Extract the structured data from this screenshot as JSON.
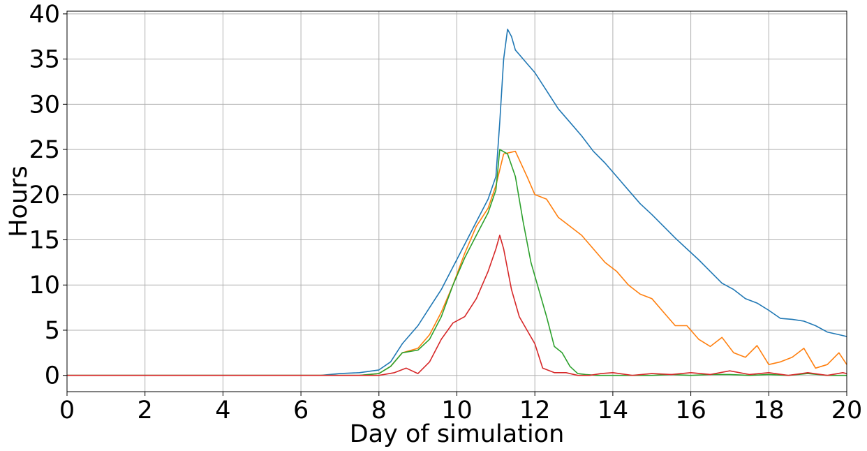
{
  "chart_data": {
    "type": "line",
    "title": "",
    "xlabel": "Day of simulation",
    "ylabel": "Hours",
    "xlim": [
      0,
      20
    ],
    "ylim": [
      -1.8,
      40.3
    ],
    "grid": true,
    "x_ticks": [
      "0",
      "2",
      "4",
      "6",
      "8",
      "10",
      "12",
      "14",
      "16",
      "18",
      "20"
    ],
    "y_ticks": [
      "0",
      "5",
      "10",
      "15",
      "20",
      "25",
      "30",
      "35",
      "40"
    ],
    "series": [
      {
        "color": "#1f77b4",
        "x": [
          0,
          6.5,
          7.0,
          7.5,
          8.0,
          8.3,
          8.6,
          9.0,
          9.3,
          9.6,
          9.9,
          10.2,
          10.5,
          10.8,
          11.0,
          11.1,
          11.2,
          11.3,
          11.4,
          11.5,
          11.6,
          11.8,
          12.0,
          12.3,
          12.6,
          12.9,
          13.2,
          13.5,
          13.8,
          14.1,
          14.4,
          14.7,
          15.0,
          15.3,
          15.6,
          15.9,
          16.2,
          16.5,
          16.8,
          17.1,
          17.4,
          17.7,
          18.0,
          18.3,
          18.6,
          18.9,
          19.2,
          19.5,
          19.8,
          20.0
        ],
        "values": [
          0.0,
          0.0,
          0.2,
          0.3,
          0.6,
          1.5,
          3.5,
          5.5,
          7.5,
          9.5,
          12.0,
          14.5,
          17.0,
          19.5,
          22.0,
          28.0,
          35.0,
          38.3,
          37.5,
          36.0,
          35.5,
          34.5,
          33.5,
          31.5,
          29.5,
          28.0,
          26.5,
          24.8,
          23.5,
          22.0,
          20.5,
          19.0,
          17.8,
          16.5,
          15.2,
          14.0,
          12.8,
          11.5,
          10.2,
          9.5,
          8.5,
          8.0,
          7.2,
          6.3,
          6.2,
          6.0,
          5.5,
          4.8,
          4.5,
          4.3
        ]
      },
      {
        "color": "#ff7f0e",
        "x": [
          0,
          7.5,
          8.0,
          8.3,
          8.6,
          9.0,
          9.3,
          9.6,
          9.9,
          10.2,
          10.5,
          10.8,
          11.0,
          11.2,
          11.5,
          11.8,
          12.0,
          12.3,
          12.6,
          12.9,
          13.2,
          13.5,
          13.8,
          14.1,
          14.4,
          14.7,
          15.0,
          15.3,
          15.6,
          15.9,
          16.2,
          16.5,
          16.8,
          17.1,
          17.4,
          17.7,
          18.0,
          18.3,
          18.6,
          18.9,
          19.2,
          19.5,
          19.8,
          20.0
        ],
        "values": [
          0.0,
          0.0,
          0.2,
          1.0,
          2.5,
          3.0,
          4.5,
          7.0,
          10.0,
          13.5,
          16.5,
          18.5,
          21.0,
          24.5,
          24.8,
          22.0,
          20.0,
          19.5,
          17.5,
          16.5,
          15.5,
          14.0,
          12.5,
          11.5,
          10.0,
          9.0,
          8.5,
          7.0,
          5.5,
          5.5,
          4.0,
          3.2,
          4.2,
          2.5,
          2.0,
          3.3,
          1.2,
          1.5,
          2.0,
          3.0,
          0.8,
          1.2,
          2.5,
          1.2
        ]
      },
      {
        "color": "#2ca02c",
        "x": [
          0,
          7.5,
          8.0,
          8.3,
          8.6,
          9.0,
          9.3,
          9.6,
          9.9,
          10.2,
          10.5,
          10.8,
          11.0,
          11.1,
          11.3,
          11.5,
          11.7,
          11.9,
          12.1,
          12.3,
          12.5,
          12.7,
          12.9,
          13.1,
          13.3,
          13.6,
          14.0,
          14.5,
          15.0,
          15.5,
          16.0,
          16.5,
          17.0,
          17.5,
          18.0,
          18.5,
          19.0,
          19.5,
          20.0
        ],
        "values": [
          0.0,
          0.0,
          0.2,
          1.0,
          2.5,
          2.8,
          4.0,
          6.5,
          10.0,
          13.0,
          15.5,
          18.0,
          20.5,
          25.0,
          24.5,
          22.0,
          17.0,
          12.5,
          9.5,
          6.5,
          3.2,
          2.5,
          1.0,
          0.2,
          0.1,
          0.0,
          0.0,
          0.0,
          0.0,
          0.1,
          0.0,
          0.1,
          0.1,
          0.0,
          0.1,
          0.0,
          0.2,
          0.0,
          0.0
        ]
      },
      {
        "color": "#d62728",
        "x": [
          0,
          8.0,
          8.4,
          8.7,
          9.0,
          9.3,
          9.6,
          9.9,
          10.2,
          10.5,
          10.8,
          11.0,
          11.1,
          11.2,
          11.4,
          11.6,
          11.8,
          12.0,
          12.2,
          12.5,
          12.8,
          13.1,
          13.4,
          13.7,
          14.0,
          14.5,
          15.0,
          15.5,
          16.0,
          16.5,
          17.0,
          17.5,
          18.0,
          18.5,
          19.0,
          19.5,
          19.9,
          20.0
        ],
        "values": [
          0.0,
          0.0,
          0.3,
          0.8,
          0.2,
          1.5,
          4.0,
          5.8,
          6.5,
          8.5,
          11.5,
          14.0,
          15.5,
          14.0,
          9.5,
          6.5,
          5.0,
          3.5,
          0.8,
          0.3,
          0.3,
          0.0,
          0.0,
          0.2,
          0.3,
          0.0,
          0.2,
          0.1,
          0.3,
          0.1,
          0.5,
          0.1,
          0.3,
          0.0,
          0.3,
          0.0,
          0.3,
          0.2
        ]
      }
    ]
  }
}
